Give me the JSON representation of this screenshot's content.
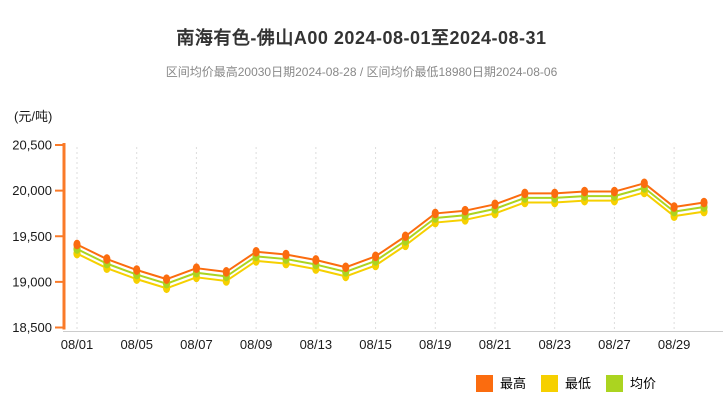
{
  "header": {
    "title": "南海有色-佛山A00 2024-08-01至2024-08-31",
    "subtitle": "区间均价最高20030日期2024-08-28 / 区间均价最低18980日期2024-08-06"
  },
  "colors": {
    "max_series": "#fb6c0f",
    "min_series": "#f6d000",
    "avg_series": "#abd420",
    "axis": "#fa7a28",
    "gridline": "#dddddd",
    "baseline": "#cccccc",
    "tick_text": "#1a1a1a"
  },
  "chart_data": {
    "type": "line",
    "title": "南海有色-佛山A00 2024-08-01至2024-08-31",
    "subtitle": "区间均价最高20030日期2024-08-28 / 区间均价最低18980日期2024-08-06",
    "unit_label": "(元/吨)",
    "ylabel": "元/吨",
    "xlabel": "",
    "ylim": [
      18500,
      20500
    ],
    "y_ticks": [
      20500,
      20000,
      19500,
      19000,
      18500
    ],
    "y_tick_labels": [
      "20,500",
      "20,000",
      "19,500",
      "19,000",
      "18,500"
    ],
    "x": [
      "08/01",
      "08/02",
      "08/05",
      "08/06",
      "08/07",
      "08/08",
      "08/09",
      "08/12",
      "08/13",
      "08/14",
      "08/15",
      "08/16",
      "08/19",
      "08/20",
      "08/21",
      "08/22",
      "08/23",
      "08/26",
      "08/27",
      "08/28",
      "08/29",
      "08/30"
    ],
    "x_tick_labels": [
      "08/01",
      "08/05",
      "08/07",
      "08/09",
      "08/13",
      "08/15",
      "08/19",
      "08/21",
      "08/23",
      "08/27",
      "08/29"
    ],
    "x_tick_indices": [
      0,
      2,
      4,
      6,
      8,
      10,
      12,
      14,
      16,
      18,
      20
    ],
    "grid": "vertical-dashed-at-labeled-ticks",
    "legend_position": "bottom-right",
    "series": [
      {
        "name": "最高",
        "color": "#fb6c0f",
        "values": [
          19410,
          19250,
          19130,
          19030,
          19150,
          19110,
          19330,
          19300,
          19240,
          19160,
          19280,
          19500,
          19750,
          19780,
          19850,
          19970,
          19970,
          19990,
          19990,
          20080,
          19820,
          19870
        ]
      },
      {
        "name": "最低",
        "color": "#f6d000",
        "values": [
          19310,
          19150,
          19030,
          18930,
          19050,
          19010,
          19230,
          19200,
          19140,
          19060,
          19180,
          19400,
          19650,
          19680,
          19750,
          19870,
          19870,
          19890,
          19890,
          19980,
          19720,
          19770
        ]
      },
      {
        "name": "均价",
        "color": "#abd420",
        "values": [
          19360,
          19200,
          19080,
          18980,
          19100,
          19060,
          19280,
          19250,
          19190,
          19110,
          19230,
          19450,
          19700,
          19730,
          19800,
          19920,
          19920,
          19940,
          19940,
          20030,
          19770,
          19820
        ]
      }
    ]
  },
  "legend": {
    "items": [
      {
        "label": "最高",
        "color": "#fb6c0f"
      },
      {
        "label": "最低",
        "color": "#f6d000"
      },
      {
        "label": "均价",
        "color": "#abd420"
      }
    ]
  }
}
